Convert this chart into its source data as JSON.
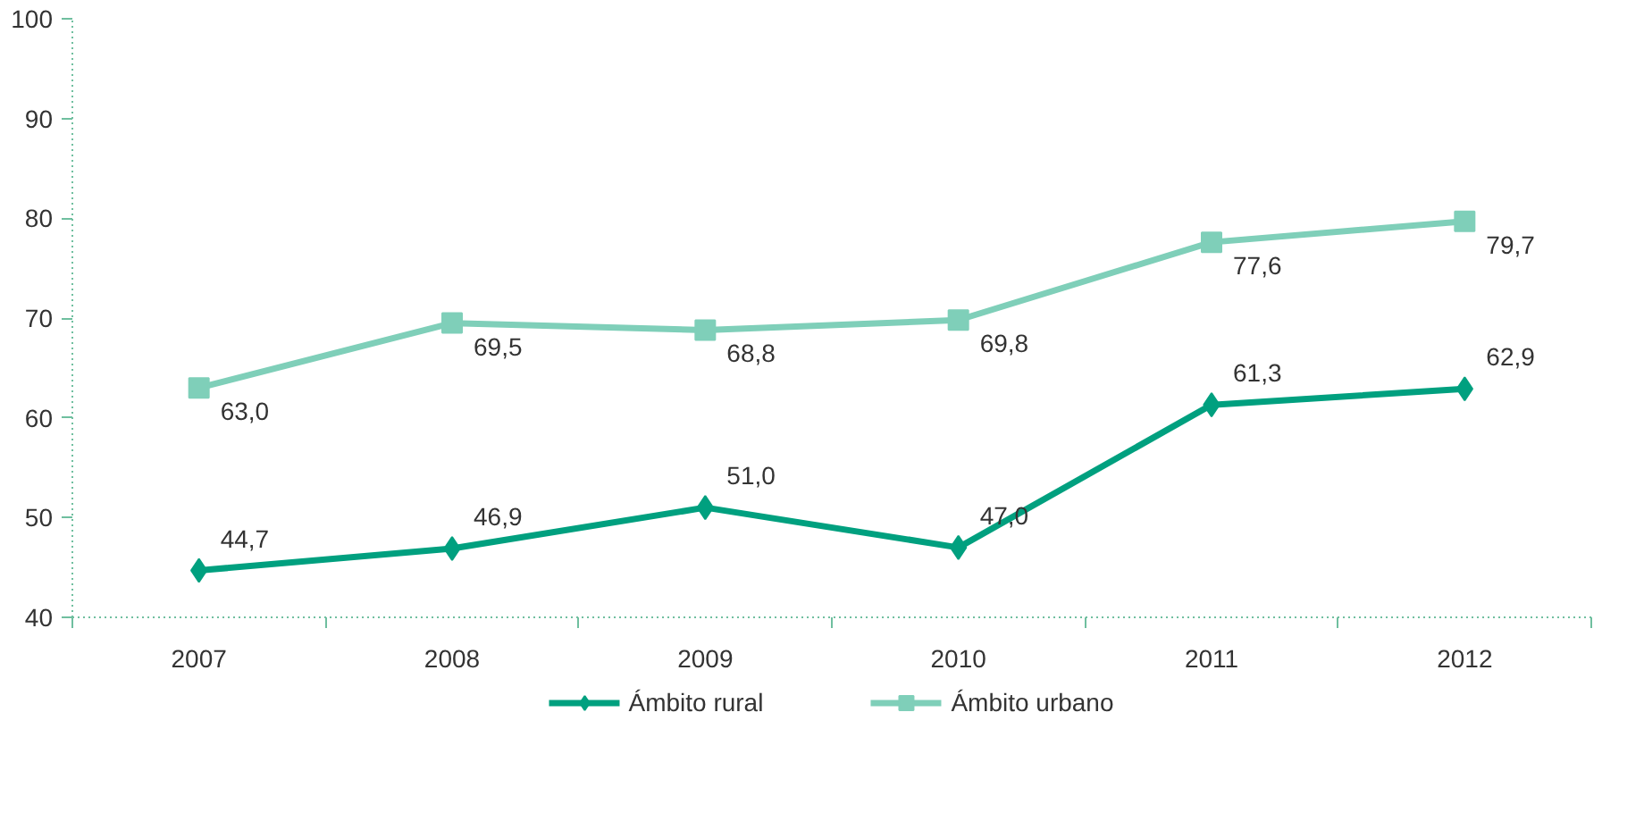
{
  "chart_data": {
    "type": "line",
    "categories": [
      "2007",
      "2008",
      "2009",
      "2010",
      "2011",
      "2012"
    ],
    "ylim": [
      40,
      100
    ],
    "yticks": [
      40,
      50,
      60,
      70,
      80,
      90,
      100
    ],
    "grid": false,
    "legend": "bottom",
    "line_style": "solid",
    "series": [
      {
        "name": "Ámbito rural",
        "color": "#00a07f",
        "marker": "diamond",
        "values": [
          44.7,
          46.9,
          51.0,
          47.0,
          61.3,
          62.9
        ],
        "value_labels": [
          "44,7",
          "46,9",
          "51,0",
          "47,0",
          "61,3",
          "62,9"
        ]
      },
      {
        "name": "Ámbito urbano",
        "color": "#7fcfb9",
        "marker": "square",
        "values": [
          63.0,
          69.5,
          68.8,
          69.8,
          77.6,
          79.7
        ],
        "value_labels": [
          "63,0",
          "69,5",
          "68,8",
          "69,8",
          "77,6",
          "79,7"
        ]
      }
    ]
  }
}
